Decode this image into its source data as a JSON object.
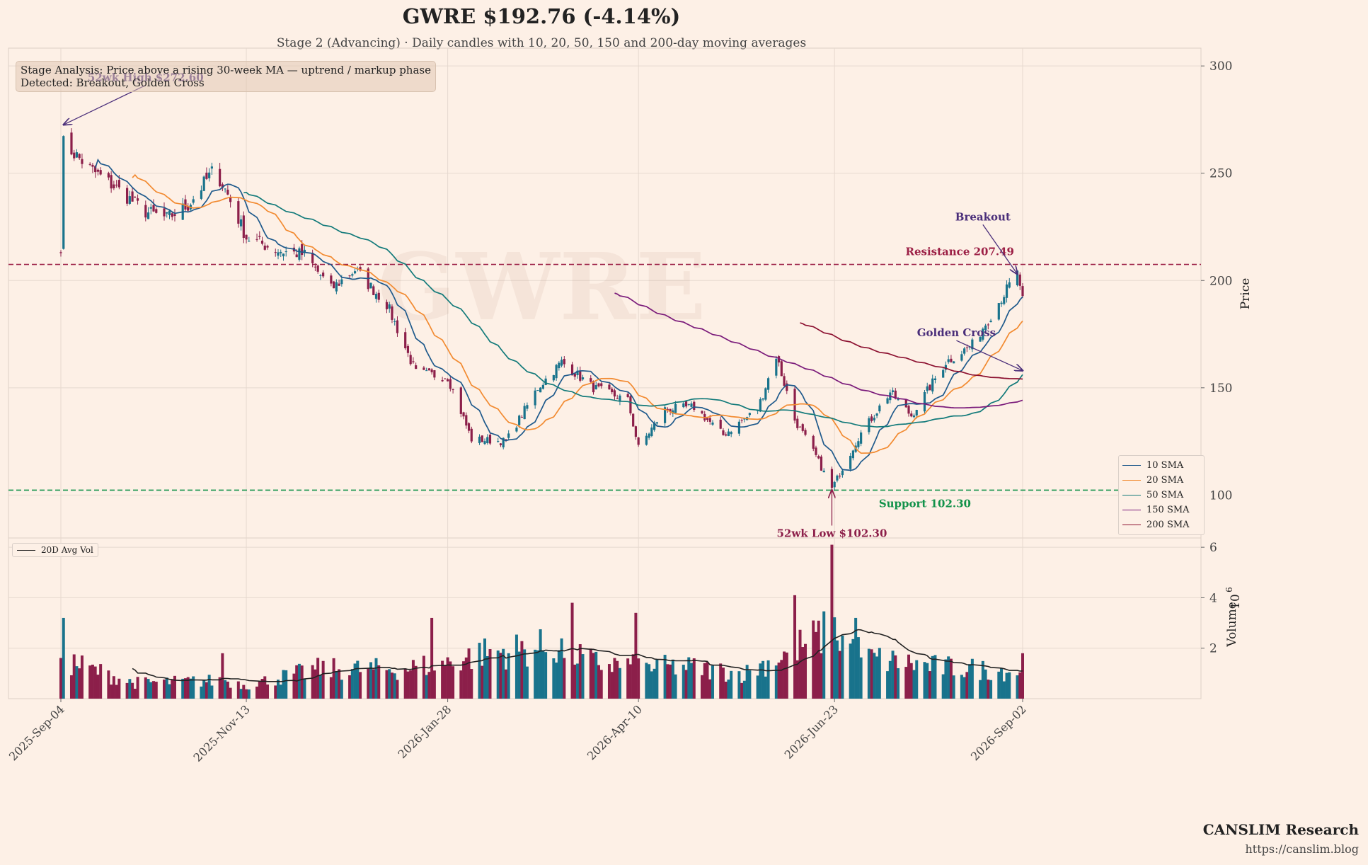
{
  "header": {
    "title": "GWRE  $192.76  (-4.14%)",
    "subtitle": "Stage 2 (Advancing)  ·  Daily candles with 10, 20, 50, 150 and 200-day moving averages"
  },
  "info_box": {
    "line1": "Stage Analysis: Price above a rising 30-week MA — uptrend / markup phase",
    "line2": "Detected: Breakout, Golden Cross"
  },
  "watermark": "GWRE",
  "footer": {
    "brand": "CANSLIM Research",
    "url": "https://canslim.blog"
  },
  "colors": {
    "background": "#fdf0e6",
    "up_candle": "#19738c",
    "down_candle": "#8c1f4a",
    "sma10": "#1f5a8c",
    "sma20": "#f28a30",
    "sma50": "#127a7a",
    "sma150": "#7a1a7a",
    "sma200": "#8c1030",
    "resistance": "#9c1f45",
    "support": "#12924a",
    "annotation": "#4a2e7a",
    "avg_vol": "#222222"
  },
  "chart_data": {
    "type": "candlestick",
    "x_ticks": [
      "2025-Sep-04",
      "2025-Nov-13",
      "2026-Jan-28",
      "2026-Apr-10",
      "2026-Jun-23",
      "2026-Sep-02"
    ],
    "x_range": [
      "2025-Sep-04",
      "2026-Sep-02"
    ],
    "price_axis": {
      "label": "Price",
      "ticks": [
        100,
        150,
        200,
        250,
        300
      ],
      "ylim": [
        80,
        305
      ]
    },
    "volume_axis": {
      "label": "Volume",
      "multiplier": "10",
      "multiplier_exp": "6",
      "ticks": [
        2,
        4,
        6
      ],
      "ylim": [
        0,
        6.2
      ]
    },
    "legend": [
      {
        "name": "10 SMA",
        "color": "#1f5a8c"
      },
      {
        "name": "20 SMA",
        "color": "#f28a30"
      },
      {
        "name": "50 SMA",
        "color": "#127a7a"
      },
      {
        "name": "150 SMA",
        "color": "#7a1a7a"
      },
      {
        "name": "200 SMA",
        "color": "#8c1030"
      }
    ],
    "volume_legend": "20D Avg Vol",
    "levels": {
      "resistance": {
        "value": 207.49,
        "label": "Resistance 207.49"
      },
      "support": {
        "value": 102.3,
        "label": "Support 102.30"
      }
    },
    "annotations": [
      {
        "text": "52wk High $272.60",
        "date": "2025-Sep-05",
        "price": 272.6,
        "text_date": "2025-Oct-06",
        "text_price": 293
      },
      {
        "text": "52wk Low $102.30",
        "date": "2026-Jun-22",
        "price": 102.3,
        "text_date": "2026-Jun-22",
        "text_price": 80.5
      },
      {
        "text": "Breakout",
        "date": "2026-Aug-31",
        "price": 203,
        "text_date": "2026-Aug-18",
        "text_price": 228
      },
      {
        "text": "Golden Cross",
        "date": "2026-Sep-02",
        "price": 158,
        "text_date": "2026-Aug-08",
        "text_price": 174
      }
    ],
    "last_close": 192.76,
    "change_pct": -4.14,
    "anchors": [
      [
        "2025-Sep-04",
        216
      ],
      [
        "2025-Sep-05",
        264
      ],
      [
        "2025-Sep-15",
        252
      ],
      [
        "2025-Sep-25",
        243
      ],
      [
        "2025-Oct-06",
        232
      ],
      [
        "2025-Oct-14",
        229
      ],
      [
        "2025-Oct-22",
        235
      ],
      [
        "2025-Nov-01",
        252
      ],
      [
        "2025-Nov-06",
        240
      ],
      [
        "2025-Nov-13",
        220
      ],
      [
        "2025-Nov-25",
        214
      ],
      [
        "2025-Dec-05",
        212
      ],
      [
        "2025-Dec-15",
        196
      ],
      [
        "2025-Dec-24",
        205
      ],
      [
        "2026-Jan-05",
        189
      ],
      [
        "2026-Jan-16",
        157
      ],
      [
        "2026-Jan-28",
        155
      ],
      [
        "2026-Feb-06",
        126
      ],
      [
        "2026-Feb-19",
        125
      ],
      [
        "2026-Mar-03",
        150
      ],
      [
        "2026-Mar-12",
        162
      ],
      [
        "2026-Mar-24",
        150
      ],
      [
        "2026-Apr-06",
        144
      ],
      [
        "2026-Apr-10",
        122
      ],
      [
        "2026-Apr-20",
        140
      ],
      [
        "2026-May-01",
        141
      ],
      [
        "2026-May-12",
        128
      ],
      [
        "2026-May-25",
        140
      ],
      [
        "2026-Jun-01",
        165
      ],
      [
        "2026-Jun-08",
        135
      ],
      [
        "2026-Jun-16",
        118
      ],
      [
        "2026-Jun-22",
        103
      ],
      [
        "2026-Jul-02",
        127
      ],
      [
        "2026-Jul-14",
        148
      ],
      [
        "2026-Jul-22",
        137
      ],
      [
        "2026-Aug-04",
        162
      ],
      [
        "2026-Aug-14",
        170
      ],
      [
        "2026-Aug-25",
        192
      ],
      [
        "2026-Aug-31",
        203
      ],
      [
        "2026-Sep-02",
        192.76
      ]
    ],
    "volume_anchors": [
      [
        "2025-Sep-04",
        1.3
      ],
      [
        "2025-Sep-05",
        3.2
      ],
      [
        "2025-Sep-08",
        1.6
      ],
      [
        "2025-Oct-01",
        0.7
      ],
      [
        "2025-Nov-05",
        0.8
      ],
      [
        "2025-Nov-13",
        0.6
      ],
      [
        "2025-Dec-10",
        1.3
      ],
      [
        "2026-Jan-10",
        1.3
      ],
      [
        "2026-Jan-28",
        1.6
      ],
      [
        "2026-Feb-10",
        2.0
      ],
      [
        "2026-Mar-10",
        2.3
      ],
      [
        "2026-Mar-24",
        1.6
      ],
      [
        "2026-Apr-10",
        1.4
      ],
      [
        "2026-Apr-28",
        1.4
      ],
      [
        "2026-May-20",
        1.1
      ],
      [
        "2026-Jun-10",
        2.3
      ],
      [
        "2026-Jun-22",
        3.0
      ],
      [
        "2026-Jul-05",
        1.8
      ],
      [
        "2026-Aug-01",
        1.4
      ],
      [
        "2026-Sep-02",
        1.2
      ]
    ],
    "volume_spikes": [
      [
        "2025-Sep-05",
        3.2
      ],
      [
        "2025-Nov-04",
        1.8
      ],
      [
        "2026-Jan-22",
        3.2
      ],
      [
        "2026-Mar-08",
        3.9
      ],
      [
        "2026-Mar-16",
        3.8
      ],
      [
        "2026-Apr-09",
        3.4
      ],
      [
        "2026-Jun-08",
        4.1
      ],
      [
        "2026-Jun-22",
        6.1
      ],
      [
        "2026-Jun-28",
        3.2
      ],
      [
        "2026-Jul-01",
        3.2
      ],
      [
        "2026-Sep-02",
        1.8
      ]
    ]
  }
}
